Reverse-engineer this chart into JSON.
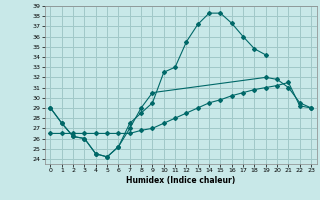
{
  "title": "",
  "xlabel": "Humidex (Indice chaleur)",
  "bg_color": "#c8e8e8",
  "grid_color": "#a0c8c8",
  "line_color": "#006868",
  "xlim": [
    -0.5,
    23.5
  ],
  "ylim": [
    23.5,
    39.0
  ],
  "xticks": [
    0,
    1,
    2,
    3,
    4,
    5,
    6,
    7,
    8,
    9,
    10,
    11,
    12,
    13,
    14,
    15,
    16,
    17,
    18,
    19,
    20,
    21,
    22,
    23
  ],
  "yticks": [
    24,
    25,
    26,
    27,
    28,
    29,
    30,
    31,
    32,
    33,
    34,
    35,
    36,
    37,
    38,
    39
  ],
  "curve1_x": [
    0,
    1,
    2,
    3,
    4,
    5,
    6,
    7,
    8,
    9,
    10,
    11,
    12,
    13,
    14,
    15,
    16,
    17,
    18,
    19
  ],
  "curve1_y": [
    29,
    27.5,
    26.2,
    26.0,
    24.5,
    24.2,
    25.2,
    27.5,
    28.5,
    29.5,
    32.5,
    33.0,
    35.5,
    37.2,
    38.3,
    38.3,
    37.3,
    36.0,
    34.8,
    34.2
  ],
  "curve2_x": [
    0,
    1,
    2,
    3,
    4,
    5,
    6,
    7,
    8,
    9,
    19,
    20,
    21,
    22,
    23
  ],
  "curve2_y": [
    29,
    27.5,
    26.2,
    26.0,
    24.5,
    24.2,
    25.2,
    27.0,
    29.0,
    30.5,
    32.0,
    31.8,
    31.0,
    29.5,
    29.0
  ],
  "curve3_x": [
    0,
    1,
    2,
    3,
    4,
    5,
    6,
    7,
    8,
    9,
    10,
    11,
    12,
    13,
    14,
    15,
    16,
    17,
    18,
    19,
    20,
    21,
    22,
    23
  ],
  "curve3_y": [
    26.5,
    26.5,
    26.5,
    26.5,
    26.5,
    26.5,
    26.5,
    26.5,
    26.8,
    27.0,
    27.5,
    28.0,
    28.5,
    29.0,
    29.5,
    29.8,
    30.2,
    30.5,
    30.8,
    31.0,
    31.2,
    31.5,
    29.2,
    29.0
  ]
}
